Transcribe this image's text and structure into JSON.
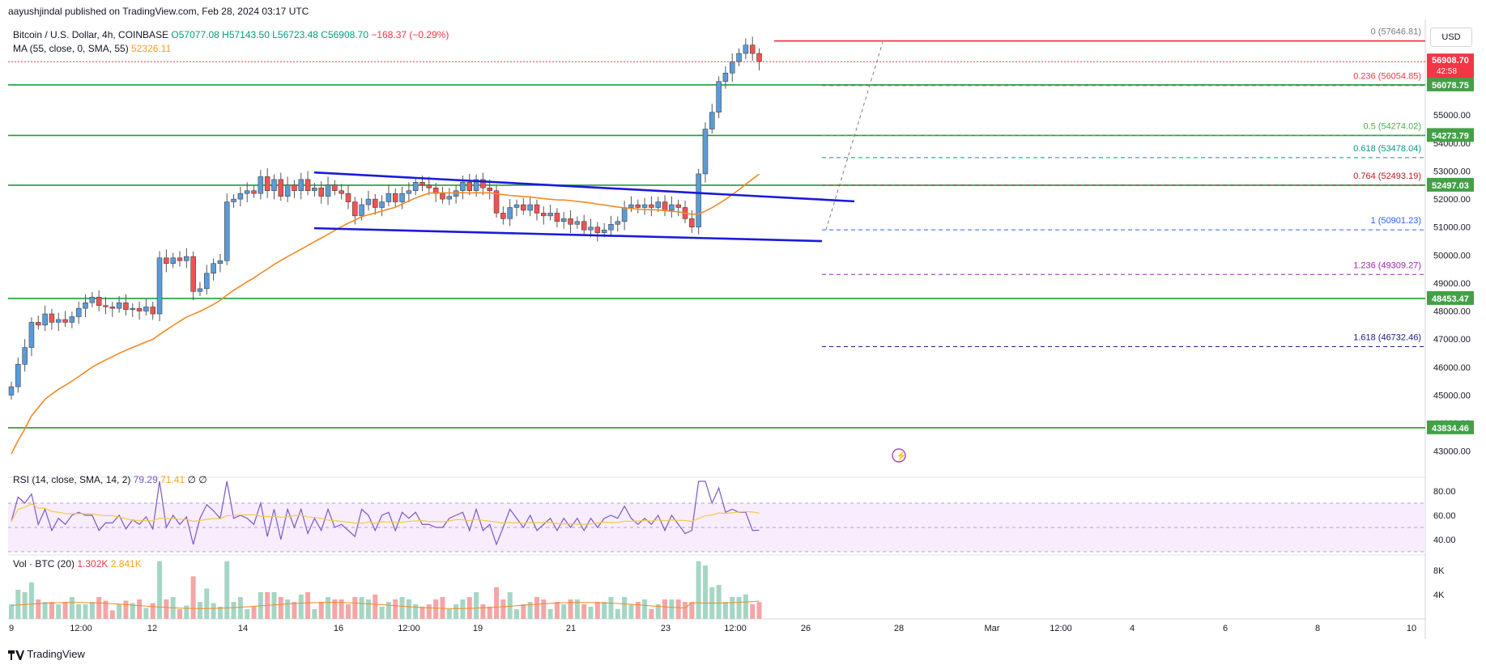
{
  "header": {
    "published": "aayushjindal published on TradingView.com, Feb 28, 2024 03:17 UTC",
    "symbol": "Bitcoin / U.S. Dollar, 4h, COINBASE",
    "open": "O57077.08",
    "high": "H57143.50",
    "low": "L56723.48",
    "close": "C56908.70",
    "change": "−168.37 (−0.29%)",
    "ma_label": "MA (55, close, 0, SMA, 55)",
    "ma_value": "52326.11",
    "currency": "USD",
    "price_badge": "56908.70",
    "countdown": "42:58",
    "brand": "TradingView"
  },
  "rsi_legend": {
    "label": "RSI (14, close, SMA, 14, 2)",
    "value": "79.29",
    "sma": "71.41",
    "z1": "∅",
    "z2": "∅"
  },
  "vol_legend": {
    "label": "Vol · BTC (20)",
    "value": "1.302K",
    "ma": "2.841K"
  },
  "chart_data": {
    "type": "candlestick",
    "price_axis": {
      "min": 42500,
      "max": 58300,
      "ticks": [
        "55000.00",
        "54000.00",
        "53000.00",
        "52000.00",
        "51000.00",
        "50000.00",
        "49000.00",
        "48000.00",
        "47000.00",
        "46000.00",
        "45000.00",
        "44000.00",
        "43000.00"
      ]
    },
    "x_axis_labels": [
      "9",
      "12:00",
      "12",
      "14",
      "16",
      "12:00",
      "19",
      "21",
      "23",
      "12:00",
      "26",
      "28",
      "Mar",
      "12:00",
      "4",
      "6",
      "8",
      "10"
    ],
    "horizontal_levels": [
      56078.75,
      54273.79,
      52497.03,
      48453.47,
      43834.46
    ],
    "level_labels": [
      "56078.75",
      "54273.79",
      "52497.03",
      "48453.47",
      "43834.46"
    ],
    "resistance_line": 57646.81,
    "fib_levels": [
      {
        "ratio": "0",
        "value": 57646.81,
        "color": "#787b86"
      },
      {
        "ratio": "0.236",
        "value": 56054.85,
        "color": "#f23645"
      },
      {
        "ratio": "0.5",
        "value": 54274.02,
        "color": "#4caf50"
      },
      {
        "ratio": "0.618",
        "value": 53478.04,
        "color": "#089981"
      },
      {
        "ratio": "0.764",
        "value": 52493.19,
        "color": "#b71c1c"
      },
      {
        "ratio": "1",
        "value": 50901.23,
        "color": "#2962ff"
      },
      {
        "ratio": "1.236",
        "value": 49309.27,
        "color": "#9c27b0"
      },
      {
        "ratio": "1.618",
        "value": 46732.46,
        "color": "#1a237e"
      }
    ],
    "closes": [
      45300,
      46100,
      46700,
      47600,
      47500,
      47900,
      47600,
      47700,
      47600,
      47800,
      48100,
      48300,
      48500,
      48200,
      48150,
      48100,
      48300,
      48050,
      48100,
      48000,
      48150,
      47900,
      49900,
      49700,
      49900,
      49800,
      49950,
      48700,
      48800,
      49350,
      49700,
      49800,
      51900,
      52000,
      52200,
      52300,
      52200,
      52800,
      52300,
      52700,
      52100,
      52500,
      52300,
      52700,
      52300,
      52400,
      52100,
      52500,
      52300,
      52200,
      51900,
      51400,
      51800,
      52000,
      51700,
      51900,
      52200,
      51900,
      52200,
      52300,
      52600,
      52500,
      52400,
      52200,
      52000,
      52100,
      52300,
      52600,
      52300,
      52700,
      52400,
      52300,
      51500,
      51300,
      51700,
      51800,
      51600,
      51800,
      51500,
      51400,
      51500,
      51200,
      51300,
      51100,
      51200,
      50900,
      51000,
      50800,
      50900,
      51100,
      51200,
      51700,
      51800,
      51700,
      51800,
      51700,
      51900,
      51600,
      51800,
      51700,
      51300,
      51000,
      52900,
      54500,
      55100,
      56200,
      56500,
      56900,
      57200,
      57500,
      57200,
      56908
    ]
  },
  "rsi_axis": [
    "80.00",
    "60.00",
    "40.00"
  ],
  "vol_axis": [
    "8K",
    "4K"
  ]
}
